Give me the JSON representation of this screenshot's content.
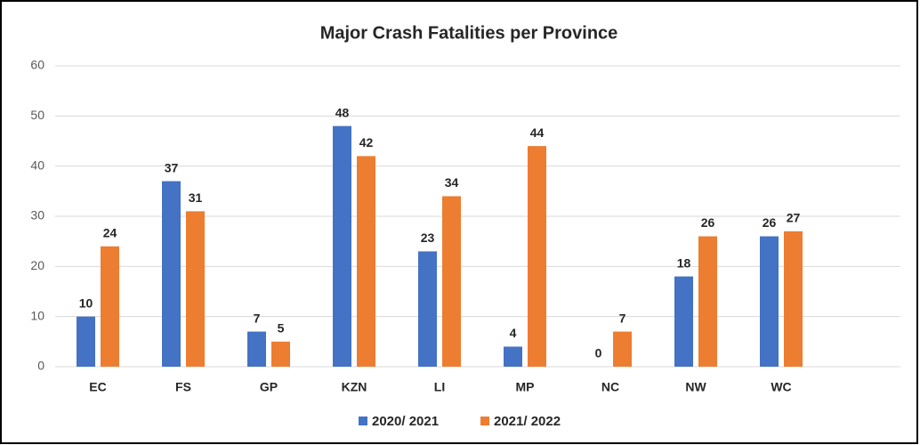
{
  "chart_data": {
    "type": "bar",
    "title": "Major Crash Fatalities per Province",
    "categories": [
      "EC",
      "FS",
      "GP",
      "KZN",
      "LI",
      "MP",
      "NC",
      "NW",
      "WC"
    ],
    "series": [
      {
        "name": "2020/ 2021",
        "color": "#4472c4",
        "values": [
          10,
          37,
          7,
          48,
          23,
          4,
          0,
          18,
          26
        ]
      },
      {
        "name": "2021/ 2022",
        "color": "#ed7d31",
        "values": [
          24,
          31,
          5,
          42,
          34,
          44,
          7,
          26,
          27
        ]
      }
    ],
    "ylim": [
      0,
      60
    ],
    "yticks": [
      0,
      10,
      20,
      30,
      40,
      50,
      60
    ],
    "grid": true,
    "legend": "bottom"
  }
}
